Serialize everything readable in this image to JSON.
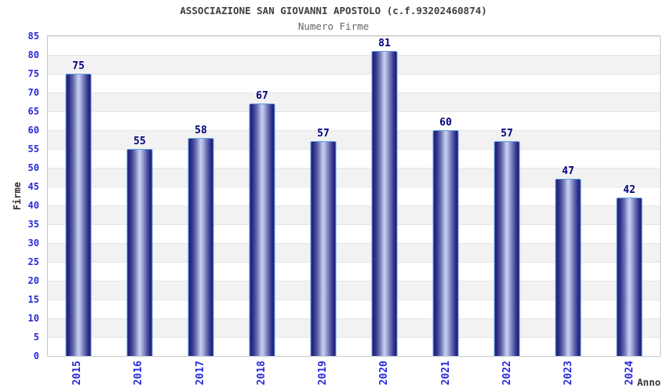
{
  "header": {
    "title": "ASSOCIAZIONE SAN GIOVANNI APOSTOLO (c.f.93202460874)",
    "subtitle": "Numero Firme"
  },
  "chart_data": {
    "type": "bar",
    "title": "ASSOCIAZIONE SAN GIOVANNI APOSTOLO (c.f.93202460874)",
    "subtitle": "Numero Firme",
    "categories": [
      "2015",
      "2016",
      "2017",
      "2018",
      "2019",
      "2020",
      "2021",
      "2022",
      "2023",
      "2024"
    ],
    "values": [
      75,
      55,
      58,
      67,
      57,
      81,
      60,
      57,
      47,
      42
    ],
    "xlabel": "Anno",
    "ylabel": "Firme",
    "ylim": [
      0,
      85
    ],
    "ytick_step": 5,
    "grid": "alternating horizontal bands every 5 units, white and light gray",
    "legend": "none",
    "bar_value_labels": true,
    "colors": {
      "bar_edge_dark": "#1f1f78",
      "bar_center_light": "#c9cef0",
      "bar_border": "#5f9fdf",
      "value_label": "#00007d",
      "axis_tick_text": "#2929dd",
      "band_gray": "#f2f2f2",
      "grid_line": "#e6e6e6",
      "plot_border": "#c9c9c9",
      "title_text": "#3f3f3f",
      "subtitle_text": "#646464",
      "axis_title_text": "#303030",
      "background": "#ffffff"
    }
  }
}
